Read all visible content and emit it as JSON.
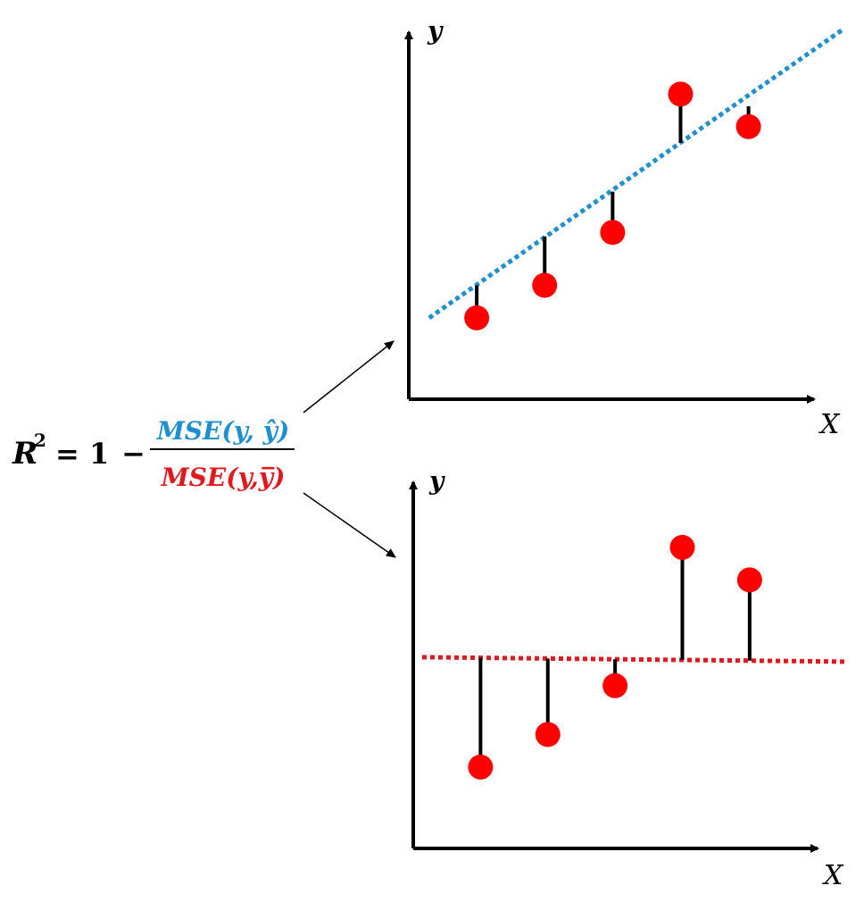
{
  "formula": {
    "lhs_base": "R",
    "lhs_exp": "2",
    "equals_one": "= 1",
    "minus": "−",
    "numerator": "MSE(y, ŷ)",
    "denominator": "MSE(y,y̅)"
  },
  "top_plot": {
    "y_label": "y",
    "x_label": "X"
  },
  "bottom_plot": {
    "y_label": "y",
    "x_label": "X"
  },
  "colors": {
    "regression_line": "#1f8fd0",
    "mean_line": "#e0191f",
    "points": "#ff0000",
    "numerator_text": "#1f8fd0",
    "denominator_text": "#e0191f",
    "axes": "#000000"
  },
  "chart_data": [
    {
      "type": "scatter",
      "title": "",
      "xlabel": "X",
      "ylabel": "y",
      "x": [
        1,
        2,
        3,
        4,
        5
      ],
      "y": [
        1.0,
        1.4,
        2.05,
        3.75,
        3.35
      ],
      "fitted": [
        1.4,
        2.0,
        2.55,
        3.15,
        3.6
      ],
      "xlim": [
        0,
        6.7
      ],
      "ylim": [
        0,
        4.5
      ],
      "line": {
        "style": "dotted",
        "kind": "regression",
        "start": [
          0.3,
          1.0
        ],
        "end": [
          6.4,
          4.55
        ]
      },
      "residuals": true
    },
    {
      "type": "scatter",
      "title": "",
      "xlabel": "X",
      "ylabel": "y",
      "x": [
        1,
        2,
        3,
        4,
        5
      ],
      "y": [
        1.0,
        1.4,
        2.0,
        3.7,
        3.3
      ],
      "mean": 2.35,
      "xlim": [
        0,
        6.7
      ],
      "ylim": [
        0,
        4.5
      ],
      "line": {
        "style": "dotted",
        "kind": "mean"
      },
      "residuals": true
    }
  ]
}
